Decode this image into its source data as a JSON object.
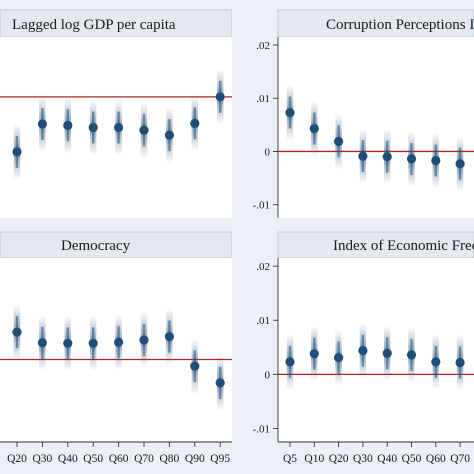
{
  "chart_data": [
    {
      "type": "scatter",
      "title": "Lagged log GDP per capita",
      "categories": [
        "Q20",
        "Q30",
        "Q40",
        "Q50",
        "Q60",
        "Q70",
        "Q80",
        "Q90",
        "Q95"
      ],
      "values": [
        0.0045,
        0.0085,
        0.0083,
        0.008,
        0.008,
        0.0076,
        0.0069,
        0.0086,
        0.0124
      ],
      "reference_line": 0.0124,
      "yticks": [],
      "ylim": [
        -0.005,
        0.021
      ],
      "colors": {
        "marker": "#1f4e79",
        "reference": "#b22222"
      }
    },
    {
      "type": "scatter",
      "title": "Corruption Perceptions I",
      "categories": [
        "Q5",
        "Q10",
        "Q20",
        "Q30",
        "Q40",
        "Q50",
        "Q60",
        "Q70"
      ],
      "values": [
        0.0073,
        0.0043,
        0.0019,
        -0.0009,
        -0.001,
        -0.0014,
        -0.0017,
        -0.0023
      ],
      "reference_line": 0,
      "yticks": [
        ".02",
        ".01",
        "0",
        "-.01"
      ],
      "ylim": [
        -0.0125,
        0.0215
      ],
      "colors": {
        "marker": "#1f4e79",
        "reference": "#b22222"
      }
    },
    {
      "type": "scatter",
      "title": "Democracy",
      "categories": [
        "Q20",
        "Q30",
        "Q40",
        "Q50",
        "Q60",
        "Q70",
        "Q80",
        "Q90",
        "Q95"
      ],
      "values": [
        0.0077,
        0.0058,
        0.0057,
        0.0057,
        0.0059,
        0.0063,
        0.0069,
        0.0016,
        -0.0014
      ],
      "reference_line": 0.0028,
      "yticks": [],
      "ylim": [
        -0.012,
        0.021
      ],
      "colors": {
        "marker": "#1f4e79",
        "reference": "#b22222"
      }
    },
    {
      "type": "scatter",
      "title": "Index of Economic Free",
      "categories": [
        "Q5",
        "Q10",
        "Q20",
        "Q30",
        "Q40",
        "Q50",
        "Q60",
        "Q70"
      ],
      "values": [
        0.0023,
        0.0038,
        0.0031,
        0.0044,
        0.0039,
        0.0036,
        0.0023,
        0.0022
      ],
      "reference_line": 0,
      "yticks": [
        ".02",
        ".01",
        "0",
        "-.01"
      ],
      "ylim": [
        -0.0125,
        0.0215
      ],
      "colors": {
        "marker": "#1f4e79",
        "reference": "#b22222"
      }
    }
  ]
}
